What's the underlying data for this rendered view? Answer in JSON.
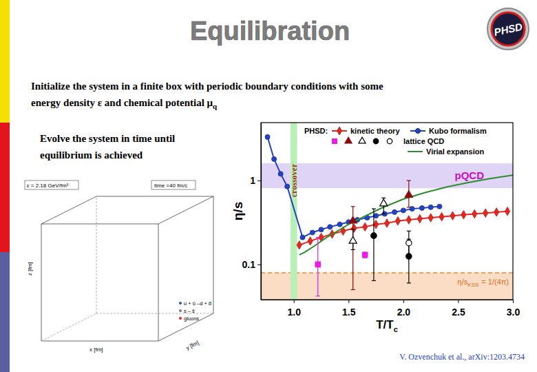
{
  "slide": {
    "title": "Equilibration",
    "text1": [
      "Initialize the system in a finite box with periodic boundary conditions with some",
      "energy density ε and chemical potential μ"
    ],
    "text1_sub": "q",
    "text2": [
      "Evolve the system in time until",
      "equilibrium is achieved"
    ],
    "citation": "V. Ozvenchuk et al., arXiv:1203.4734",
    "logo": "PHSD"
  },
  "box": {
    "energy": "ε = 2.18 GeV/fm³",
    "time": "time =40 fm/c",
    "x_label": "x [fm]",
    "y_label": "y [fm]",
    "z_label": "z [fm]",
    "legend": [
      {
        "name": "u + ū –d + d̄",
        "color": "#2a4fb0"
      },
      {
        "name": "s – s̄",
        "color": "#7a7a7a"
      },
      {
        "name": "gluons",
        "color": "#e02828"
      }
    ]
  },
  "chart_data": {
    "type": "line",
    "log": "y",
    "x_label": "T/T",
    "x_label_sub": "c",
    "y_label": "η/s",
    "xlim": [
      0.7,
      3.0
    ],
    "ylim": [
      0.038,
      4.9
    ],
    "xticks": [
      {
        "value": 1,
        "label": "1.0"
      },
      {
        "value": 1.5,
        "label": "1.5"
      },
      {
        "value": 2,
        "label": "2.0"
      },
      {
        "value": 2.5,
        "label": "2.5"
      },
      {
        "value": 3,
        "label": "3.0"
      }
    ],
    "yticks": [
      {
        "value": 0.1,
        "label": "0.1"
      },
      1
    ],
    "legend": "top",
    "legend_title": "PHSD:",
    "series": [
      {
        "name": "kinetic theory",
        "color": "#e8251f",
        "marker": "diamond",
        "line_style": "solid",
        "x": [
          1.05,
          1.15,
          1.25,
          1.35,
          1.45,
          1.55,
          1.65,
          1.75,
          1.85,
          1.95,
          2.05,
          2.15,
          2.25,
          2.35,
          2.45,
          2.55,
          2.65,
          2.75,
          2.85,
          2.95
        ],
        "values": [
          0.17,
          0.19,
          0.21,
          0.23,
          0.25,
          0.27,
          0.28,
          0.3,
          0.31,
          0.33,
          0.34,
          0.35,
          0.36,
          0.37,
          0.38,
          0.39,
          0.4,
          0.41,
          0.42,
          0.43
        ]
      },
      {
        "name": "Kubo formalism",
        "color": "#2443c4",
        "marker": "circle",
        "line_style": "solid",
        "x": [
          0.76,
          0.82,
          0.88,
          0.94,
          1.08,
          1.17,
          1.25,
          1.33,
          1.42,
          1.5,
          1.58,
          1.67,
          1.75,
          1.83,
          1.92,
          2.0,
          2.08,
          2.17,
          2.25,
          2.33
        ],
        "values": [
          3.3,
          1.8,
          1.2,
          0.85,
          0.21,
          0.24,
          0.26,
          0.28,
          0.3,
          0.32,
          0.34,
          0.36,
          0.38,
          0.4,
          0.42,
          0.44,
          0.46,
          0.47,
          0.48,
          0.49
        ]
      },
      {
        "name": "Virial expansion",
        "color": "#2e8b2e",
        "marker": "none",
        "line_style": "solid",
        "x": [
          1.05,
          1.1,
          1.2,
          1.3,
          1.4,
          1.5,
          1.6,
          1.8,
          2.0,
          2.2,
          2.4,
          2.6,
          2.8,
          3.0
        ],
        "values": [
          0.13,
          0.14,
          0.17,
          0.21,
          0.25,
          0.3,
          0.35,
          0.47,
          0.6,
          0.72,
          0.84,
          0.95,
          1.06,
          1.16
        ]
      }
    ],
    "lattice": {
      "name": "lattice QCD",
      "sets": [
        {
          "marker": "square",
          "color": "#e61ee6",
          "x": [
            1.22,
            1.65
          ],
          "values": [
            0.1,
            0.13
          ],
          "lower": [
            0.042,
            0.12
          ],
          "upper": [
            0.21,
            0.14
          ]
        },
        {
          "marker": "triangle",
          "color": "#8b0a0a",
          "x": [
            1.54,
            2.05
          ],
          "values": [
            0.33,
            0.67
          ],
          "lower": [
            0.05,
            0.48
          ],
          "upper": [
            0.49,
            1.0
          ]
        },
        {
          "marker": "triangle-open",
          "color": "#000000",
          "x": [
            1.54,
            1.82
          ],
          "values": [
            0.19,
            0.53
          ],
          "lower": [
            0.15,
            0.4
          ],
          "upper": [
            0.26,
            0.62
          ]
        },
        {
          "marker": "circle",
          "color": "#000000",
          "x": [
            1.73,
            2.05
          ],
          "values": [
            0.22,
            0.125
          ],
          "lower": [
            0.064,
            0.06
          ],
          "upper": [
            0.46,
            0.2
          ]
        },
        {
          "marker": "circle-open",
          "color": "#000000",
          "x": [
            2.05
          ],
          "values": [
            0.18
          ],
          "lower": [
            0.13
          ],
          "upper": [
            0.25
          ]
        }
      ]
    },
    "pqcd_band": {
      "label": "pQCD",
      "color": "#d9ccf4",
      "range": [
        0.81,
        1.6
      ]
    },
    "kss_band": {
      "label": "η/s",
      "label_sub": "KSS",
      "label_rest": "= 1/(4π)",
      "color": "#fbdcc4",
      "line_color": "#f08a30",
      "value": 0.0796
    },
    "crossover_band": {
      "label": "crossover",
      "color": "#b8f0b8",
      "range": [
        0.97,
        1.03
      ]
    }
  }
}
